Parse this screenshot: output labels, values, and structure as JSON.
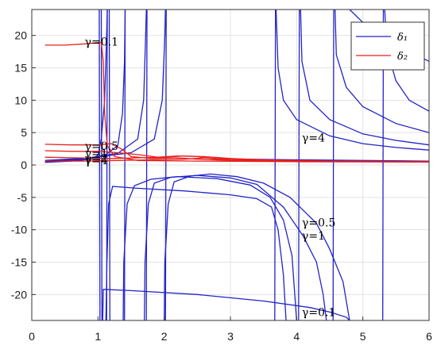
{
  "chart_data": {
    "type": "line",
    "title": "",
    "xlabel": "",
    "ylabel": "",
    "xlim": [
      0,
      6
    ],
    "ylim": [
      -24,
      24
    ],
    "x_ticks": [
      0,
      1,
      2,
      3,
      4,
      5,
      6
    ],
    "y_ticks": [
      -20,
      -15,
      -10,
      -5,
      0,
      5,
      10,
      15,
      20
    ],
    "grid": true,
    "legend_position": "top-right",
    "legend": [
      {
        "name": "δ₁",
        "color": "#2323c8"
      },
      {
        "name": "δ₂",
        "color": "#e8201c"
      }
    ],
    "annotations": [
      {
        "text": "γ=0.1",
        "x": 0.8,
        "y": 18.4,
        "series": "δ₂"
      },
      {
        "text": "γ=0.5",
        "x": 0.8,
        "y": 2.3,
        "series": "δ₂"
      },
      {
        "text": "γ=1",
        "x": 0.8,
        "y": 1.2,
        "series": "δ₂"
      },
      {
        "text": "γ=2",
        "x": 0.8,
        "y": 0.4,
        "series": "δ₂"
      },
      {
        "text": "γ=4",
        "x": 0.8,
        "y": 0.1,
        "series": "δ₂"
      },
      {
        "text": "γ=4",
        "x": 4.08,
        "y": 3.6,
        "series": "δ₁"
      },
      {
        "text": "γ=0.5",
        "x": 4.08,
        "y": -9.5,
        "series": "δ₁"
      },
      {
        "text": "γ=1",
        "x": 4.08,
        "y": -11.5,
        "series": "δ₁"
      },
      {
        "text": "γ=0.1",
        "x": 4.08,
        "y": -23.3,
        "series": "δ₁"
      }
    ],
    "series": [
      {
        "name": "δ₁",
        "color": "#2323c8",
        "points": [
          [
            1.07,
            -24
          ],
          [
            1.075,
            -22
          ],
          [
            1.08,
            -19.2
          ],
          [
            1.5,
            -19.4
          ],
          [
            2.5,
            -20
          ],
          [
            3.5,
            -21
          ],
          [
            4.2,
            -22
          ],
          [
            4.5,
            -22.7
          ],
          [
            4.75,
            -23.5
          ],
          [
            4.8,
            -24
          ]
        ]
      },
      {
        "name": "δ₁",
        "color": "#2323c8",
        "points": [
          [
            1.12,
            -24
          ],
          [
            1.135,
            -15
          ],
          [
            1.16,
            -6
          ],
          [
            1.22,
            -3.3
          ],
          [
            1.6,
            -3.6
          ],
          [
            2.3,
            -4
          ],
          [
            3,
            -4.6
          ],
          [
            3.4,
            -5.2
          ],
          [
            3.62,
            -6.5
          ],
          [
            3.72,
            -10
          ],
          [
            3.8,
            -17
          ],
          [
            3.84,
            -24
          ]
        ]
      },
      {
        "name": "δ₁",
        "color": "#2323c8",
        "points": [
          [
            1.38,
            -24
          ],
          [
            1.39,
            -15
          ],
          [
            1.44,
            -6
          ],
          [
            1.55,
            -3.2
          ],
          [
            1.8,
            -2.2
          ],
          [
            2.2,
            -1.8
          ],
          [
            2.8,
            -2.1
          ],
          [
            3.3,
            -3.1
          ],
          [
            3.6,
            -5
          ],
          [
            3.8,
            -8.5
          ],
          [
            3.93,
            -14
          ],
          [
            4.0,
            -24
          ]
        ]
      },
      {
        "name": "δ₁",
        "color": "#2323c8",
        "points": [
          [
            1.7,
            -24
          ],
          [
            1.71,
            -15
          ],
          [
            1.76,
            -6
          ],
          [
            1.85,
            -2.8
          ],
          [
            2.1,
            -1.9
          ],
          [
            2.5,
            -1.6
          ],
          [
            3.0,
            -2
          ],
          [
            3.4,
            -3
          ],
          [
            3.8,
            -6.5
          ],
          [
            4.1,
            -11
          ],
          [
            4.3,
            -15
          ],
          [
            4.4,
            -20
          ],
          [
            4.45,
            -24
          ]
        ]
      },
      {
        "name": "δ₁",
        "color": "#2323c8",
        "points": [
          [
            2.0,
            -24
          ],
          [
            2.01,
            -15
          ],
          [
            2.06,
            -6
          ],
          [
            2.15,
            -2.6
          ],
          [
            2.4,
            -1.7
          ],
          [
            2.7,
            -1.4
          ],
          [
            3.1,
            -1.8
          ],
          [
            3.5,
            -2.8
          ],
          [
            3.9,
            -5
          ],
          [
            4.3,
            -9
          ],
          [
            4.5,
            -13
          ],
          [
            4.7,
            -18
          ],
          [
            4.8,
            -24
          ]
        ]
      },
      {
        "name": "δ₁",
        "color": "#2323c8",
        "points": [
          [
            1.02,
            24
          ],
          [
            1.03,
            -24
          ]
        ]
      },
      {
        "name": "δ₁",
        "color": "#2323c8",
        "points": [
          [
            1.06,
            -24
          ],
          [
            1.05,
            24
          ]
        ]
      },
      {
        "name": "δ₁",
        "color": "#2323c8",
        "points": [
          [
            1.13,
            -24
          ],
          [
            1.14,
            24
          ]
        ]
      },
      {
        "name": "δ₁",
        "color": "#2323c8",
        "points": [
          [
            1.18,
            -24
          ],
          [
            1.17,
            24
          ]
        ]
      },
      {
        "name": "δ₁",
        "color": "#2323c8",
        "points": [
          [
            1.4,
            -24
          ],
          [
            1.41,
            24
          ]
        ]
      },
      {
        "name": "δ₁",
        "color": "#2323c8",
        "points": [
          [
            1.73,
            -24
          ],
          [
            1.74,
            24
          ]
        ]
      },
      {
        "name": "δ₁",
        "color": "#2323c8",
        "points": [
          [
            2.02,
            -24
          ],
          [
            2.03,
            24
          ]
        ]
      },
      {
        "name": "δ₁",
        "color": "#2323c8",
        "points": [
          [
            3.67,
            -24
          ],
          [
            3.68,
            24
          ]
        ]
      },
      {
        "name": "δ₁",
        "color": "#2323c8",
        "points": [
          [
            4.03,
            -24
          ],
          [
            4.04,
            24
          ]
        ]
      },
      {
        "name": "δ₁",
        "color": "#2323c8",
        "points": [
          [
            4.55,
            -24
          ],
          [
            4.56,
            24
          ]
        ]
      },
      {
        "name": "δ₁",
        "color": "#2323c8",
        "points": [
          [
            5.3,
            -24
          ],
          [
            5.31,
            24
          ]
        ]
      },
      {
        "name": "δ₁",
        "color": "#2323c8",
        "points": [
          [
            0.2,
            0.4
          ],
          [
            0.6,
            0.6
          ],
          [
            0.9,
            0.9
          ],
          [
            1.0,
            1.5
          ],
          [
            1.05,
            4
          ],
          [
            1.1,
            10
          ],
          [
            1.13,
            20
          ],
          [
            1.14,
            24
          ]
        ]
      },
      {
        "name": "δ₁",
        "color": "#2323c8",
        "points": [
          [
            0.2,
            0.5
          ],
          [
            0.7,
            0.8
          ],
          [
            1.1,
            1.5
          ],
          [
            1.3,
            3
          ],
          [
            1.37,
            8
          ],
          [
            1.4,
            16
          ],
          [
            1.41,
            24
          ]
        ]
      },
      {
        "name": "δ₁",
        "color": "#2323c8",
        "points": [
          [
            0.2,
            0.6
          ],
          [
            0.8,
            1
          ],
          [
            1.3,
            1.8
          ],
          [
            1.6,
            4
          ],
          [
            1.69,
            10
          ],
          [
            1.72,
            20
          ],
          [
            1.73,
            24
          ]
        ]
      },
      {
        "name": "δ₁",
        "color": "#2323c8",
        "points": [
          [
            0.2,
            0.7
          ],
          [
            0.9,
            1.1
          ],
          [
            1.5,
            1.9
          ],
          [
            1.85,
            4
          ],
          [
            1.97,
            10
          ],
          [
            2.01,
            20
          ],
          [
            2.02,
            24
          ]
        ]
      },
      {
        "name": "δ₁",
        "color": "#2323c8",
        "points": [
          [
            3.69,
            24
          ],
          [
            3.72,
            15
          ],
          [
            3.8,
            10
          ],
          [
            4.0,
            7
          ],
          [
            4.5,
            4.5
          ],
          [
            5,
            3.3
          ],
          [
            5.5,
            2.7
          ],
          [
            6,
            2.3
          ]
        ]
      },
      {
        "name": "δ₁",
        "color": "#2323c8",
        "points": [
          [
            4.06,
            24
          ],
          [
            4.08,
            16
          ],
          [
            4.2,
            10
          ],
          [
            4.5,
            7
          ],
          [
            5,
            4.8
          ],
          [
            5.5,
            3.8
          ],
          [
            6,
            3.1
          ]
        ]
      },
      {
        "name": "δ₁",
        "color": "#2323c8",
        "points": [
          [
            4.58,
            24
          ],
          [
            4.6,
            17
          ],
          [
            4.75,
            12
          ],
          [
            5,
            9
          ],
          [
            5.5,
            6.4
          ],
          [
            6,
            5
          ]
        ]
      },
      {
        "name": "δ₁",
        "color": "#2323c8",
        "points": [
          [
            5.33,
            24
          ],
          [
            5.36,
            18
          ],
          [
            5.5,
            13
          ],
          [
            5.7,
            10
          ],
          [
            6,
            8.3
          ]
        ]
      },
      {
        "name": "δ₁",
        "color": "#2323c8",
        "points": [
          [
            4.8,
            24
          ],
          [
            5,
            22
          ],
          [
            5.4,
            19
          ],
          [
            5.8,
            17
          ],
          [
            6,
            16
          ]
        ]
      },
      {
        "name": "δ₁",
        "color": "#2323c8",
        "points": [
          [
            3.2,
            0.9
          ],
          [
            4,
            0.8
          ],
          [
            5,
            0.7
          ],
          [
            6,
            0.6
          ]
        ]
      },
      {
        "name": "δ₂",
        "color": "#e8201c",
        "points": [
          [
            0.2,
            18.5
          ],
          [
            0.5,
            18.5
          ],
          [
            0.8,
            18.7
          ],
          [
            1.0,
            18.9
          ],
          [
            1.05,
            18.9
          ],
          [
            1.08,
            16
          ],
          [
            1.1,
            8
          ],
          [
            1.14,
            3
          ],
          [
            1.25,
            1.3
          ],
          [
            1.6,
            0.7
          ],
          [
            2.5,
            0.6
          ],
          [
            4,
            0.5
          ],
          [
            6,
            0.45
          ]
        ]
      },
      {
        "name": "δ₂",
        "color": "#e8201c",
        "points": [
          [
            0.2,
            3.2
          ],
          [
            0.6,
            3.1
          ],
          [
            1.0,
            3.1
          ],
          [
            1.2,
            3.3
          ],
          [
            1.35,
            2.5
          ],
          [
            1.5,
            1.3
          ],
          [
            1.8,
            1
          ],
          [
            2.2,
            1.1
          ],
          [
            2.5,
            0.9
          ],
          [
            3,
            0.7
          ],
          [
            4,
            0.55
          ],
          [
            6,
            0.45
          ]
        ]
      },
      {
        "name": "δ₂",
        "color": "#e8201c",
        "points": [
          [
            0.2,
            2.2
          ],
          [
            0.6,
            2.1
          ],
          [
            1.0,
            2.1
          ],
          [
            1.3,
            1.9
          ],
          [
            1.6,
            1.6
          ],
          [
            1.9,
            1.2
          ],
          [
            2.2,
            1.4
          ],
          [
            2.5,
            1.3
          ],
          [
            2.8,
            0.9
          ],
          [
            3.2,
            0.8
          ],
          [
            4,
            0.6
          ],
          [
            6,
            0.5
          ]
        ]
      },
      {
        "name": "δ₂",
        "color": "#e8201c",
        "points": [
          [
            0.2,
            1.2
          ],
          [
            0.7,
            1.1
          ],
          [
            1.2,
            1.0
          ],
          [
            1.6,
            1.1
          ],
          [
            2.0,
            1.2
          ],
          [
            2.3,
            1.4
          ],
          [
            2.6,
            1.3
          ],
          [
            3.0,
            1.0
          ],
          [
            3.5,
            0.8
          ],
          [
            4.5,
            0.6
          ],
          [
            6,
            0.5
          ]
        ]
      },
      {
        "name": "δ₂",
        "color": "#e8201c",
        "points": [
          [
            0.2,
            0.6
          ],
          [
            0.8,
            0.6
          ],
          [
            1.3,
            0.7
          ],
          [
            1.8,
            0.8
          ],
          [
            2.3,
            0.9
          ],
          [
            2.6,
            1.1
          ],
          [
            3.0,
            0.9
          ],
          [
            3.5,
            0.7
          ],
          [
            4.5,
            0.55
          ],
          [
            6,
            0.5
          ]
        ]
      }
    ]
  }
}
